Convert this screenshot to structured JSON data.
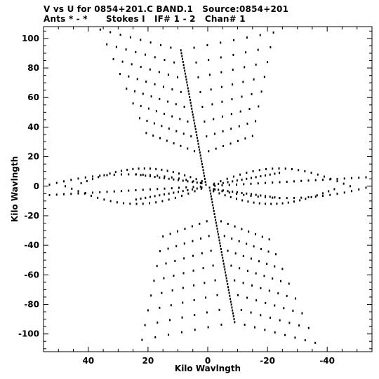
{
  "header": {
    "title_line1": "V vs U for 0854+201.C BAND.1   Source:0854+201",
    "title_line2": "Ants * - *      Stokes I   IF# 1 - 2   Chan# 1"
  },
  "chart_data": {
    "type": "scatter",
    "title": "V vs U for 0854+201.C BAND.1   Source:0854+201",
    "subtitle": "Ants * - *      Stokes I   IF# 1 - 2   Chan# 1",
    "xlabel": "Kilo Wavlngth",
    "ylabel": "Kilo Wavlngth",
    "xlim": [
      55,
      -55
    ],
    "ylim": [
      -112,
      108
    ],
    "x_reversed": true,
    "xticks": [
      40,
      20,
      0,
      -20,
      -40
    ],
    "yticks": [
      100,
      80,
      60,
      40,
      20,
      0,
      -20,
      -40,
      -60,
      -80,
      -100
    ],
    "xticklabels": [
      "40",
      "20",
      "0",
      "-20",
      "-40"
    ],
    "yticklabels": [
      "100",
      "80",
      "60",
      "40",
      "20",
      "0",
      "-20",
      "-40",
      "-60",
      "-80",
      "-100"
    ],
    "grid": false,
    "marker_color": "#000000",
    "points_description": "uv-coverage tracks: a central vertical track from (9,92) to (-9,-92) plus symmetric chevron arms forming a six-pointed star pattern",
    "central_track": {
      "start": [
        9,
        92
      ],
      "end": [
        -9,
        -92
      ]
    },
    "chevron_arms": [
      {
        "side": "left",
        "rows_v": [
          92,
          82,
          72,
          62,
          52,
          42,
          32,
          22,
          12
        ],
        "arm_u_end": [
          36,
          34,
          32,
          30,
          28,
          26,
          24,
          22,
          20
        ]
      },
      {
        "side": "right",
        "rows_v": [
          92,
          82,
          72,
          62,
          52,
          42,
          32,
          22,
          12
        ],
        "arm_u_end": [
          -22,
          -21,
          -20,
          -19,
          -18,
          -17,
          -16,
          -15,
          -14
        ]
      }
    ],
    "horizontal_band": {
      "u_extent": [
        53,
        -53
      ],
      "v_half_width": 14
    }
  }
}
